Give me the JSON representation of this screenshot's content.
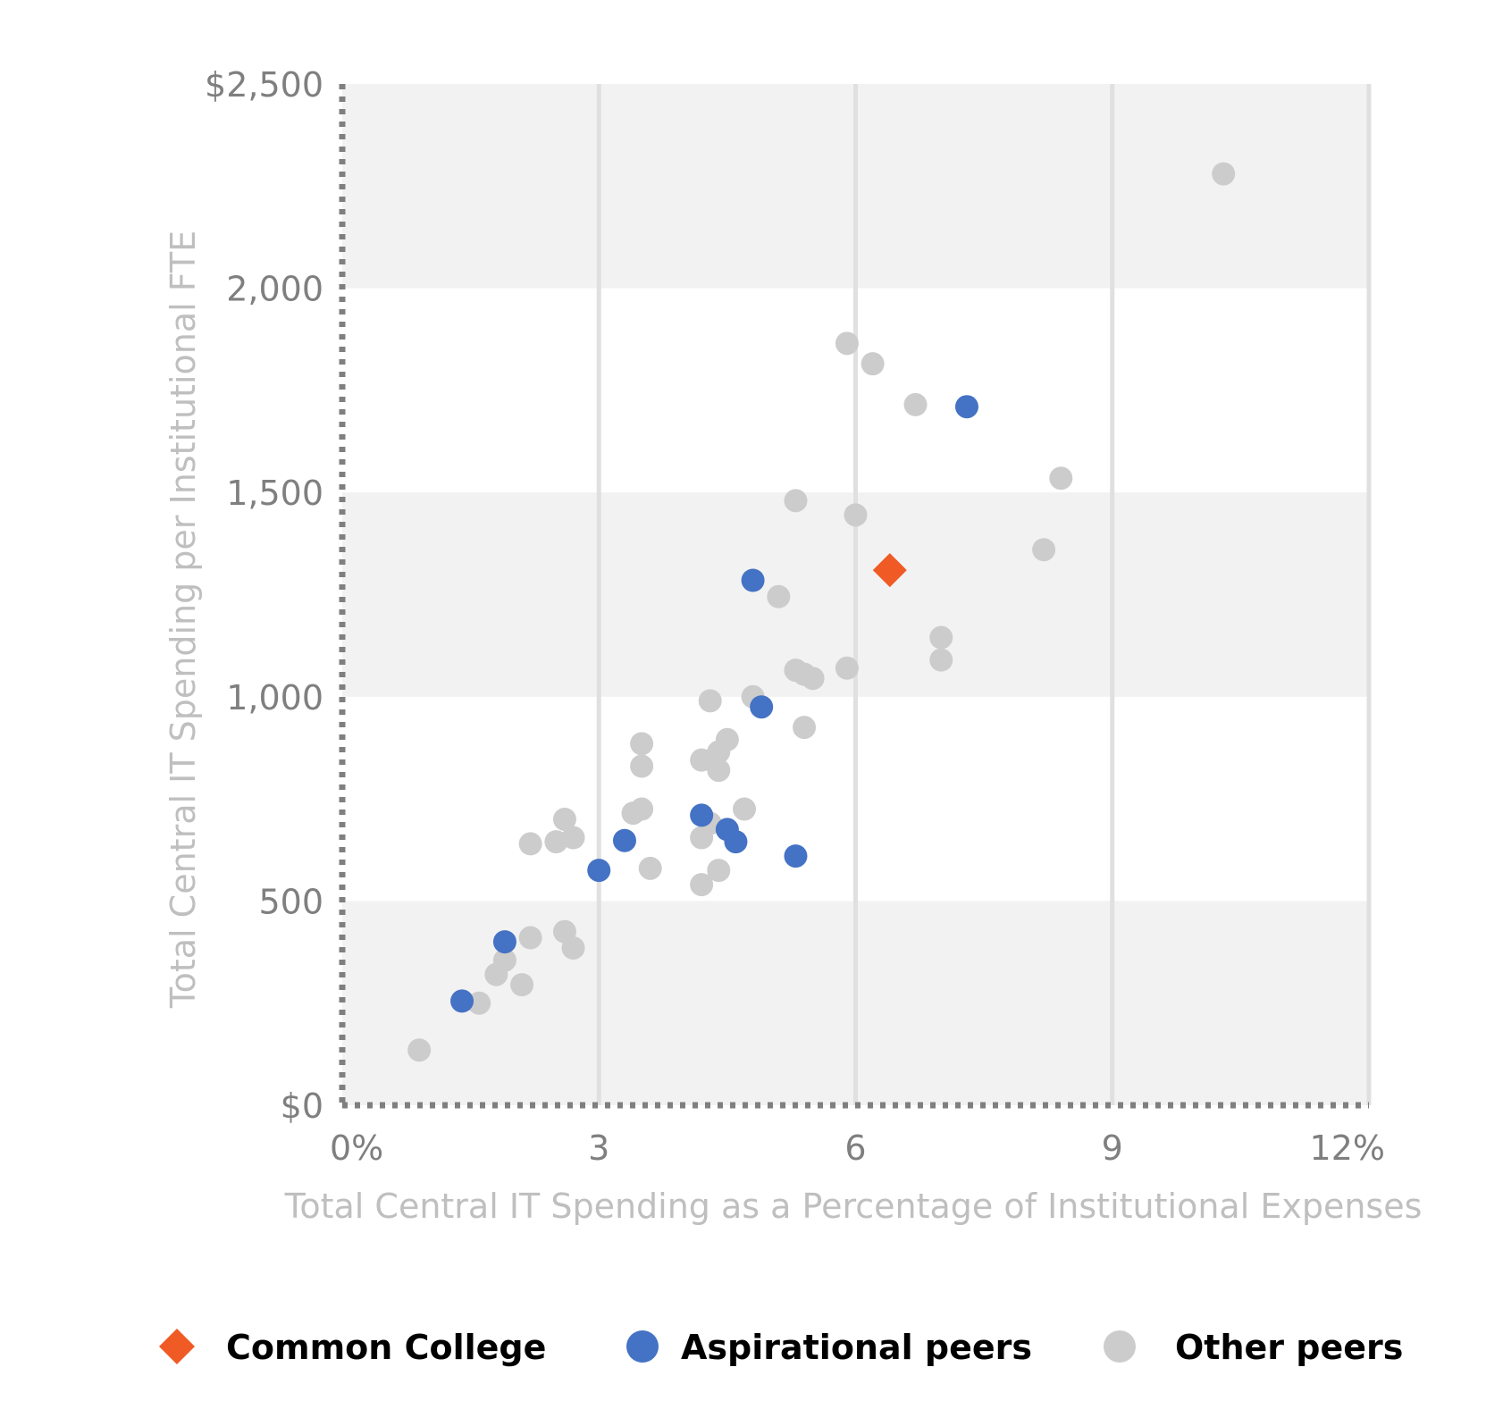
{
  "chart_data": {
    "type": "scatter",
    "xlabel": "Total Central IT Spending as a Percentage of Institutional Expenses",
    "ylabel": "Total Central IT Spending per Institutional FTE",
    "xlim": [
      0,
      12
    ],
    "ylim": [
      0,
      2500
    ],
    "x_ticks": [
      {
        "value": 0,
        "label": "0%"
      },
      {
        "value": 3,
        "label": "3"
      },
      {
        "value": 6,
        "label": "6"
      },
      {
        "value": 9,
        "label": "9"
      },
      {
        "value": 12,
        "label": "12%"
      }
    ],
    "y_ticks": [
      {
        "value": 0,
        "label": "$0"
      },
      {
        "value": 500,
        "label": "500"
      },
      {
        "value": 1000,
        "label": "1,000"
      },
      {
        "value": 1500,
        "label": "1,500"
      },
      {
        "value": 2000,
        "label": "2,000"
      },
      {
        "value": 2500,
        "label": "$2,500"
      }
    ],
    "grid": {
      "vertical": true,
      "horizontal_bands": true
    },
    "legend_position": "bottom",
    "series": [
      {
        "name": "Common College",
        "marker": "diamond",
        "color": "#f05a24",
        "points": [
          [
            6.4,
            1310
          ]
        ]
      },
      {
        "name": "Aspirational peers",
        "marker": "circle",
        "color": "#4472c4",
        "points": [
          [
            7.3,
            1710
          ],
          [
            4.8,
            1285
          ],
          [
            4.9,
            975
          ],
          [
            4.2,
            710
          ],
          [
            4.5,
            675
          ],
          [
            4.6,
            645
          ],
          [
            5.3,
            610
          ],
          [
            3.3,
            648
          ],
          [
            3.0,
            575
          ],
          [
            1.9,
            400
          ],
          [
            1.4,
            255
          ]
        ]
      },
      {
        "name": "Other peers",
        "marker": "circle",
        "color": "#cccccc",
        "points": [
          [
            10.3,
            2280
          ],
          [
            5.9,
            1865
          ],
          [
            6.2,
            1815
          ],
          [
            6.7,
            1715
          ],
          [
            8.4,
            1535
          ],
          [
            5.3,
            1480
          ],
          [
            6.0,
            1445
          ],
          [
            8.2,
            1360
          ],
          [
            5.1,
            1245
          ],
          [
            7.0,
            1145
          ],
          [
            7.0,
            1090
          ],
          [
            5.9,
            1070
          ],
          [
            5.3,
            1065
          ],
          [
            5.4,
            1055
          ],
          [
            5.5,
            1045
          ],
          [
            4.8,
            1000
          ],
          [
            4.3,
            990
          ],
          [
            5.4,
            925
          ],
          [
            4.5,
            895
          ],
          [
            3.5,
            885
          ],
          [
            4.4,
            865
          ],
          [
            4.2,
            845
          ],
          [
            3.5,
            830
          ],
          [
            4.4,
            820
          ],
          [
            3.5,
            725
          ],
          [
            3.4,
            715
          ],
          [
            4.7,
            725
          ],
          [
            4.3,
            690
          ],
          [
            2.6,
            700
          ],
          [
            2.7,
            655
          ],
          [
            2.5,
            645
          ],
          [
            2.2,
            640
          ],
          [
            4.2,
            655
          ],
          [
            3.6,
            580
          ],
          [
            4.4,
            575
          ],
          [
            4.2,
            540
          ],
          [
            2.6,
            425
          ],
          [
            2.2,
            410
          ],
          [
            2.7,
            385
          ],
          [
            1.9,
            355
          ],
          [
            1.8,
            320
          ],
          [
            2.1,
            295
          ],
          [
            1.6,
            250
          ],
          [
            0.9,
            135
          ]
        ]
      }
    ]
  }
}
